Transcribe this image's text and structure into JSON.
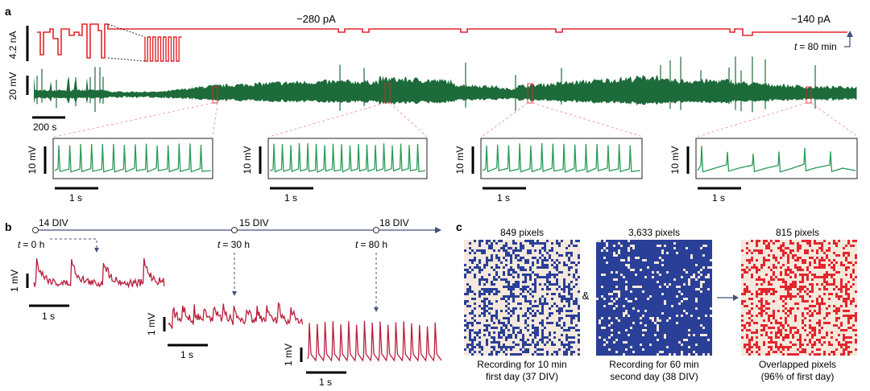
{
  "colors": {
    "red": "#e3262e",
    "green": "#1d6b3a",
    "green_light": "#2a9b57",
    "crimson": "#b81f3c",
    "blue": "#2a3f97",
    "navy": "#43527a",
    "beige": "#f5e8dc"
  },
  "panel_a": {
    "label": "a",
    "current_scale": "4.2 nA",
    "current_1": "−280 pA",
    "current_2": "−140 pA",
    "time_annotation": "= 80 min",
    "time_var": "t",
    "voltage_scale": "20 mV",
    "time_scale": "200 s",
    "insets": [
      {
        "v_scale": "10 mV",
        "t_scale": "1 s",
        "spikes": 14
      },
      {
        "v_scale": "10 mV",
        "t_scale": "1 s",
        "spikes": 18
      },
      {
        "v_scale": "10 mV",
        "t_scale": "1 s",
        "spikes": 14
      },
      {
        "v_scale": "10 mV",
        "t_scale": "1 s",
        "spikes": 6
      }
    ]
  },
  "panel_b": {
    "label": "b",
    "timeline": [
      {
        "div": "14 DIV",
        "time": "= 0 h"
      },
      {
        "div": "15 DIV",
        "time": "= 30 h"
      },
      {
        "div": "18 DIV",
        "time": "= 80 h"
      }
    ],
    "time_var": "t",
    "traces": [
      {
        "v_scale": "1 mV",
        "t_scale": "1 s"
      },
      {
        "v_scale": "1 mV",
        "t_scale": "1 s"
      },
      {
        "v_scale": "1 mV",
        "t_scale": "1 s"
      }
    ]
  },
  "panel_c": {
    "label": "c",
    "maps": [
      {
        "count": "849 pixels",
        "caption1": "Recording for 10 min",
        "caption2": "first day (37 DIV)"
      },
      {
        "count": "3,633 pixels",
        "caption1": "Recording for 60 min",
        "caption2": "second day (38 DIV)"
      },
      {
        "count": "815 pixels",
        "caption1": "Overlapped pixels",
        "caption2": "(96% of first day)"
      }
    ],
    "ampersand": "&",
    "arrow": "→"
  }
}
